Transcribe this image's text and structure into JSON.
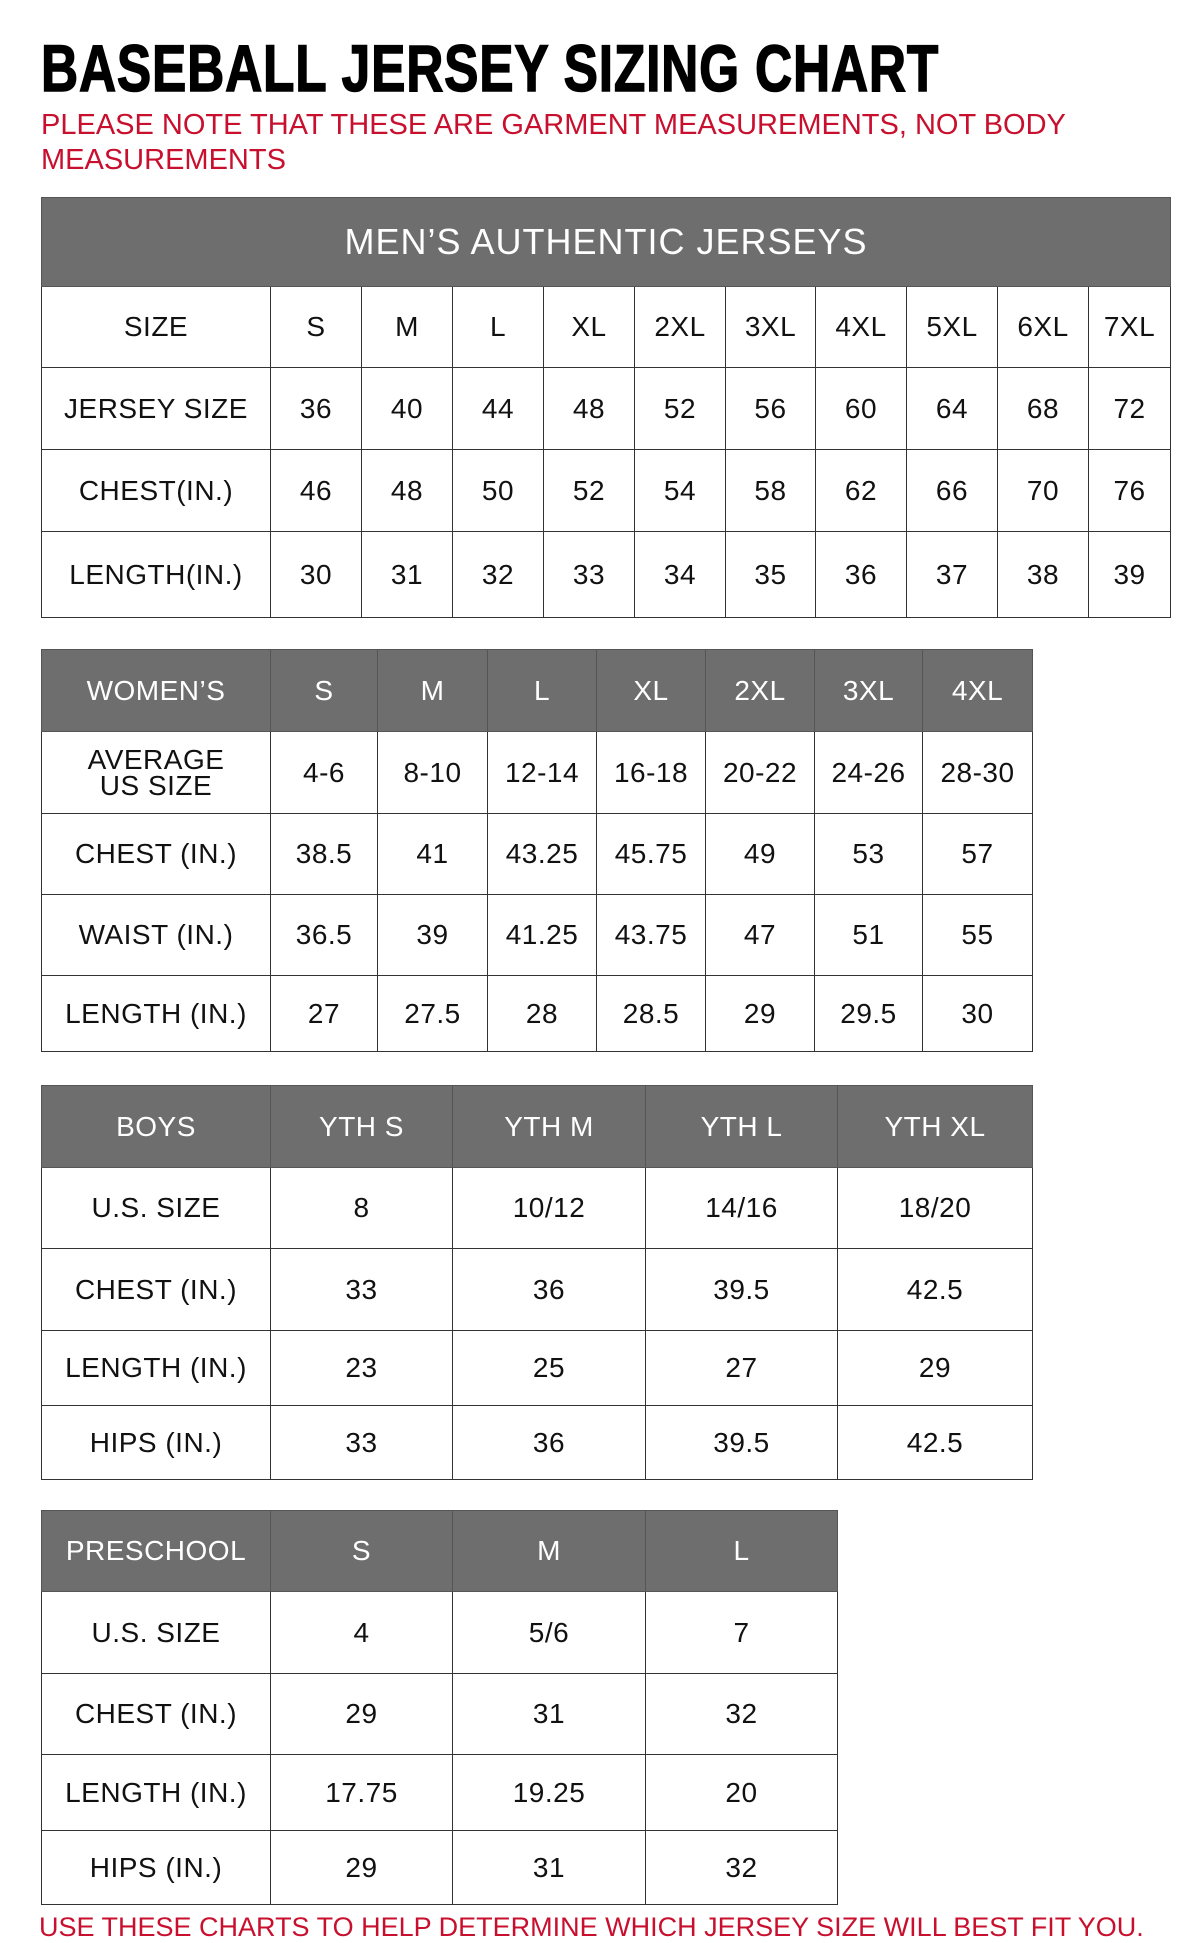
{
  "title": "BASEBALL JERSEY SIZING CHART",
  "note": "PLEASE NOTE THAT THESE ARE GARMENT MEASUREMENTS, NOT BODY MEASUREMENTS",
  "footer": "USE THESE CHARTS TO HELP DETERMINE WHICH JERSEY SIZE WILL BEST FIT YOU.",
  "colors": {
    "header_bg": "#6e6e6e",
    "note_red": "#c8102e"
  },
  "tables": [
    {
      "id": "mens",
      "band": "MEN’S AUTHENTIC JERSEYS",
      "header": [
        "SIZE",
        "S",
        "M",
        "L",
        "XL",
        "2XL",
        "3XL",
        "4XL",
        "5XL",
        "6XL",
        "7XL"
      ],
      "rows": [
        [
          "JERSEY SIZE",
          "36",
          "40",
          "44",
          "48",
          "52",
          "56",
          "60",
          "64",
          "68",
          "72"
        ],
        [
          "CHEST(IN.)",
          "46",
          "48",
          "50",
          "52",
          "54",
          "58",
          "62",
          "66",
          "70",
          "76"
        ],
        [
          "LENGTH(IN.)",
          "30",
          "31",
          "32",
          "33",
          "34",
          "35",
          "36",
          "37",
          "38",
          "39"
        ]
      ]
    },
    {
      "id": "womens",
      "header": [
        "WOMEN’S",
        "S",
        "M",
        "L",
        "XL",
        "2XL",
        "3XL",
        "4XL"
      ],
      "rows": [
        [
          "AVERAGE US SIZE",
          "4-6",
          "8-10",
          "12-14",
          "16-18",
          "20-22",
          "24-26",
          "28-30"
        ],
        [
          "CHEST (IN.)",
          "38.5",
          "41",
          "43.25",
          "45.75",
          "49",
          "53",
          "57"
        ],
        [
          "WAIST (IN.)",
          "36.5",
          "39",
          "41.25",
          "43.75",
          "47",
          "51",
          "55"
        ],
        [
          "LENGTH (IN.)",
          "27",
          "27.5",
          "28",
          "28.5",
          "29",
          "29.5",
          "30"
        ]
      ]
    },
    {
      "id": "boys",
      "header": [
        "BOYS",
        "YTH S",
        "YTH M",
        "YTH L",
        "YTH XL"
      ],
      "rows": [
        [
          "U.S. SIZE",
          "8",
          "10/12",
          "14/16",
          "18/20"
        ],
        [
          "CHEST (IN.)",
          "33",
          "36",
          "39.5",
          "42.5"
        ],
        [
          "LENGTH (IN.)",
          "23",
          "25",
          "27",
          "29"
        ],
        [
          "HIPS (IN.)",
          "33",
          "36",
          "39.5",
          "42.5"
        ]
      ]
    },
    {
      "id": "preschool",
      "header": [
        "PRESCHOOL",
        "S",
        "M",
        "L"
      ],
      "rows": [
        [
          "U.S. SIZE",
          "4",
          "5/6",
          "7"
        ],
        [
          "CHEST (IN.)",
          "29",
          "31",
          "32"
        ],
        [
          "LENGTH (IN.)",
          "17.75",
          "19.25",
          "20"
        ],
        [
          "HIPS (IN.)",
          "29",
          "31",
          "32"
        ]
      ]
    }
  ]
}
